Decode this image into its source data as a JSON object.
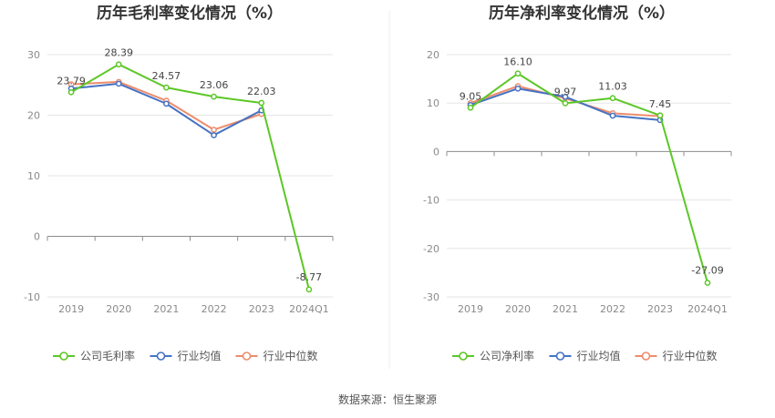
{
  "source": "数据来源：恒生聚源",
  "colors": {
    "company": "#5cc726",
    "industry_avg": "#4472c4",
    "industry_median": "#ed8c6c",
    "grid": "#e6e6e6",
    "axis": "#8c8c8c",
    "divider": "#eeeeee"
  },
  "legend": {
    "industry_avg": "行业均值",
    "industry_median": "行业中位数"
  },
  "chart_data": [
    {
      "type": "line",
      "title": "历年毛利率变化情况（%）",
      "categories": [
        "2019",
        "2020",
        "2021",
        "2022",
        "2023",
        "2024Q1"
      ],
      "ylim": [
        -10,
        30
      ],
      "yticks": [
        -10,
        0,
        10,
        20,
        30
      ],
      "grid": true,
      "legend_position": "bottom",
      "series": [
        {
          "name": "公司毛利率",
          "key": "company",
          "values": [
            23.79,
            28.39,
            24.57,
            23.06,
            22.03,
            -8.77
          ],
          "labels": [
            "23.79",
            "28.39",
            "24.57",
            "23.06",
            "22.03",
            "-8.77"
          ]
        },
        {
          "name": "行业均值",
          "key": "industry_avg",
          "values": [
            24.4,
            25.2,
            21.9,
            16.7,
            20.8,
            null
          ]
        },
        {
          "name": "行业中位数",
          "key": "industry_median",
          "values": [
            25.1,
            25.5,
            22.4,
            17.6,
            20.2,
            null
          ]
        }
      ]
    },
    {
      "type": "line",
      "title": "历年净利率变化情况（%）",
      "categories": [
        "2019",
        "2020",
        "2021",
        "2022",
        "2023",
        "2024Q1"
      ],
      "ylim": [
        -30,
        20
      ],
      "yticks": [
        -30,
        -20,
        -10,
        0,
        10,
        20
      ],
      "grid": true,
      "legend_position": "bottom",
      "series": [
        {
          "name": "公司净利率",
          "key": "company",
          "values": [
            9.05,
            16.1,
            9.97,
            11.03,
            7.45,
            -27.09
          ],
          "labels": [
            "9.05",
            "16.10",
            "9.97",
            "11.03",
            "7.45",
            "-27.09"
          ]
        },
        {
          "name": "行业均值",
          "key": "industry_avg",
          "values": [
            9.6,
            13.0,
            11.3,
            7.4,
            6.5,
            null
          ]
        },
        {
          "name": "行业中位数",
          "key": "industry_median",
          "values": [
            10.0,
            13.5,
            11.0,
            7.9,
            7.3,
            null
          ]
        }
      ]
    }
  ]
}
